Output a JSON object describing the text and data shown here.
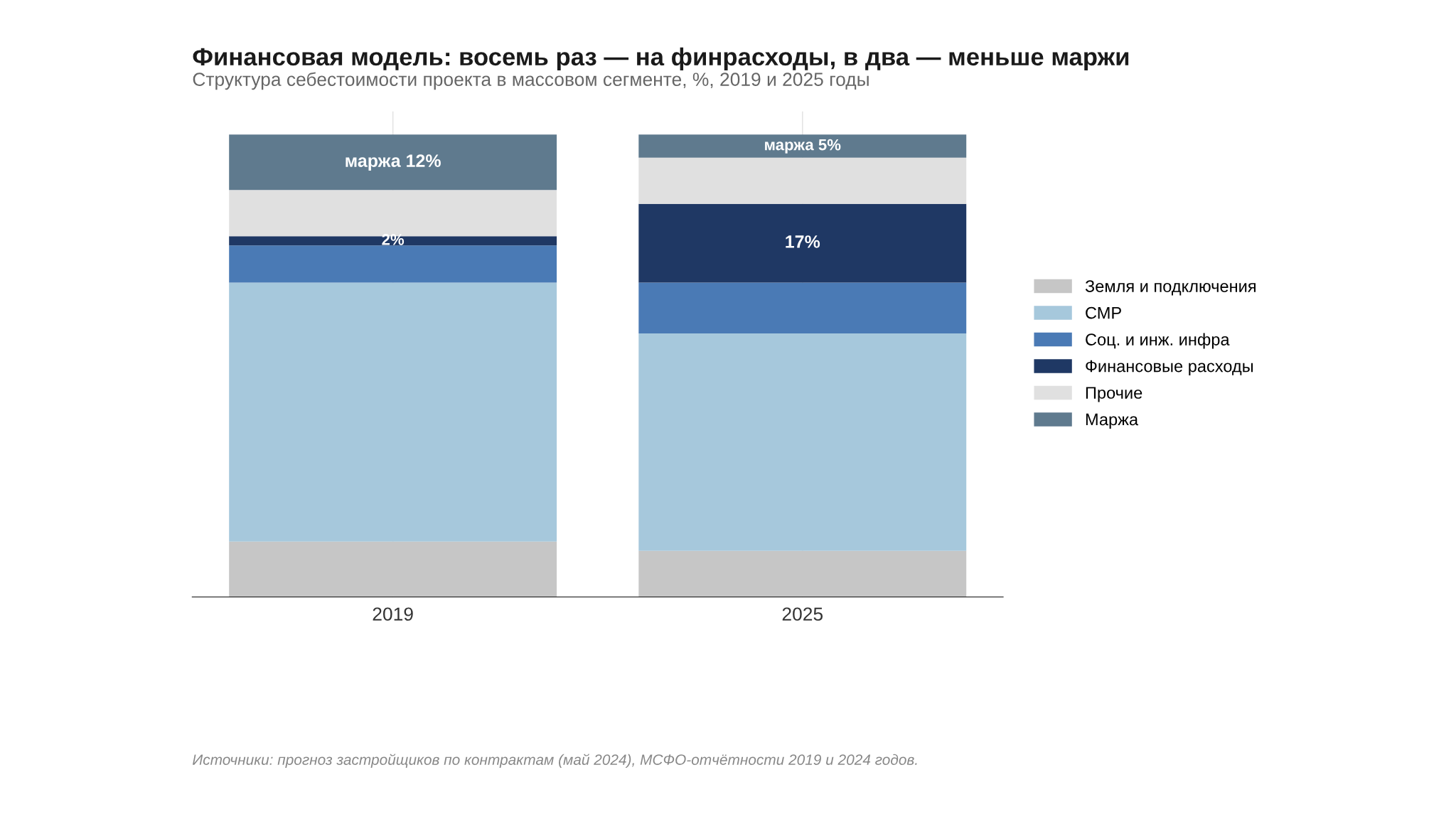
{
  "chart_data": {
    "type": "bar",
    "stacked": true,
    "tick_labels": "x",
    "title": "Финансовая модель: восемь раз — на финрасходы, в два — меньше маржи",
    "subtitle": "Структура себестоимости проекта в массовом сегменте, %, 2019 и 2025 годы",
    "categories": [
      "2019",
      "2025"
    ],
    "series": [
      {
        "name": "Земля и подключения",
        "color": "#c6c6c6",
        "values": [
          12,
          10
        ]
      },
      {
        "name": "СМР",
        "color": "#a6c8dc",
        "values": [
          56,
          47
        ]
      },
      {
        "name": "Соц. и инж. инфра",
        "color": "#4a7ab5",
        "values": [
          8,
          11
        ]
      },
      {
        "name": "Финансовые расходы",
        "color": "#1f3864",
        "values": [
          2,
          17
        ],
        "value_labels": [
          "2%",
          "17%"
        ]
      },
      {
        "name": "Прочие",
        "color": "#e0e0e0",
        "values": [
          10,
          10
        ]
      },
      {
        "name": "Маржа",
        "color": "#5f7a8e",
        "values": [
          12,
          5
        ],
        "value_labels": [
          "маржа 12%",
          "маржа 5%"
        ]
      }
    ],
    "grid": "x",
    "legend": "right",
    "annotations": [
      "Источники: прогноз застройщиков по контрактам (май 2024), МСФО-отчётности 2019 и 2024 годов."
    ]
  }
}
